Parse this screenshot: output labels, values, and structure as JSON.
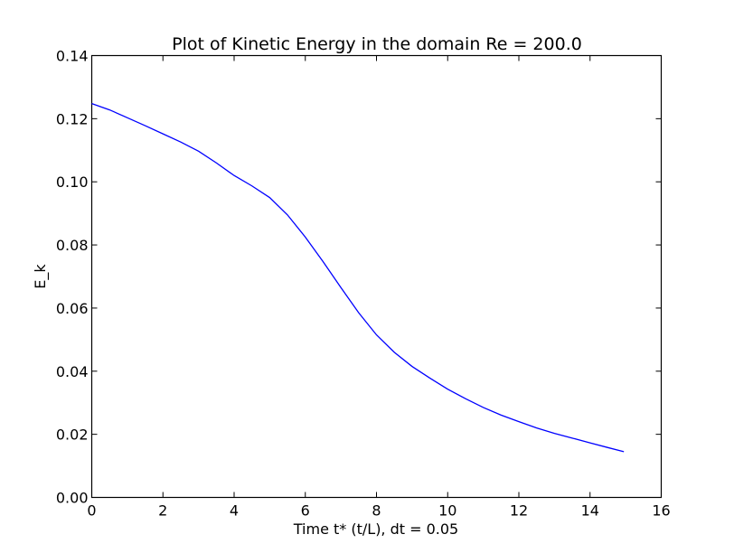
{
  "chart_data": {
    "type": "line",
    "title": "Plot of Kinetic Energy in the domain Re = 200.0",
    "xlabel": "Time t* (t/L),  dt = 0.05",
    "ylabel": "E_k",
    "xlim": [
      0,
      16
    ],
    "ylim": [
      0,
      0.14
    ],
    "x_ticks": [
      0,
      2,
      4,
      6,
      8,
      10,
      12,
      14,
      16
    ],
    "x_tick_labels": [
      "0",
      "2",
      "4",
      "6",
      "8",
      "10",
      "12",
      "14",
      "16"
    ],
    "y_ticks": [
      0,
      0.02,
      0.04,
      0.06,
      0.08,
      0.1,
      0.12,
      0.14
    ],
    "y_tick_labels": [
      "0.00",
      "0.02",
      "0.04",
      "0.06",
      "0.08",
      "0.10",
      "0.12",
      "0.14"
    ],
    "grid": false,
    "series": [
      {
        "color": "#0000ff",
        "x": [
          0,
          0.5,
          1,
          1.5,
          2,
          2.5,
          3,
          3.5,
          4,
          4.5,
          5,
          5.5,
          6,
          6.5,
          7,
          7.5,
          8,
          8.5,
          9,
          9.5,
          10,
          10.5,
          11,
          11.5,
          12,
          12.5,
          13,
          13.5,
          14,
          14.5,
          14.95
        ],
        "y": [
          0.1248,
          0.1228,
          0.1203,
          0.1178,
          0.1152,
          0.1126,
          0.1097,
          0.106,
          0.102,
          0.0987,
          0.095,
          0.0895,
          0.0825,
          0.0747,
          0.0665,
          0.0585,
          0.0515,
          0.046,
          0.0415,
          0.0378,
          0.0343,
          0.0313,
          0.0285,
          0.0261,
          0.024,
          0.022,
          0.0203,
          0.0188,
          0.0173,
          0.0158,
          0.0145
        ]
      }
    ]
  }
}
